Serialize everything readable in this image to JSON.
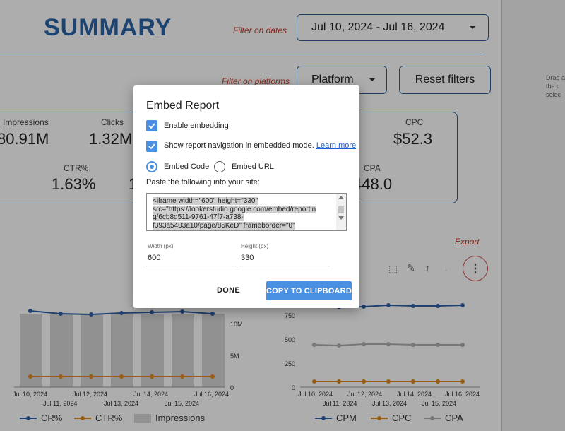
{
  "header": {
    "title": "SUMMARY",
    "filter_dates_label": "Filter on dates",
    "date_range": "Jul 10, 2024 - Jul 16, 2024",
    "filter_platforms_label": "Filter on platforms",
    "platform_button": "Platform",
    "reset_button": "Reset filters"
  },
  "kpis": [
    {
      "label": "Impressions",
      "value": "80.91M"
    },
    {
      "label": "Clicks",
      "value": "1.32M"
    },
    {
      "label": "CPC",
      "value": "$52.3"
    },
    {
      "label": "CTR%",
      "value": "1.63%"
    },
    {
      "label": "CPA",
      "value": "448.0"
    },
    {
      "partial_value": "1"
    }
  ],
  "export_label": "Export",
  "right_panel_hint": [
    "Drag a",
    "the c",
    "selec"
  ],
  "left_chart": {
    "x_labels_top": [
      "Jul 10, 2024",
      "Jul 12, 2024",
      "Jul 14, 2024",
      "Jul 16, 2024"
    ],
    "x_labels_bottom": [
      "Jul 11, 2024",
      "Jul 13, 2024",
      "Jul 15, 2024"
    ],
    "y_right_labels": [
      "10M",
      "5M",
      "0"
    ],
    "legend": [
      "CR%",
      "CTR%",
      "Impressions"
    ]
  },
  "right_chart": {
    "x_labels_top": [
      "Jul 10, 2024",
      "Jul 12, 2024",
      "Jul 14, 2024",
      "Jul 16, 2024"
    ],
    "x_labels_bottom": [
      "Jul 11, 2024",
      "Jul 13, 2024",
      "Jul 15, 2024"
    ],
    "y_labels": [
      "750",
      "500",
      "250",
      "0"
    ],
    "legend": [
      "CPM",
      "CPC",
      "CPA"
    ]
  },
  "dialog": {
    "title": "Embed Report",
    "enable_embedding": "Enable embedding",
    "show_navigation": "Show report navigation in embedded mode.",
    "learn_more": "Learn more",
    "embed_code": "Embed Code",
    "embed_url": "Embed URL",
    "paste_label": "Paste the following into your site:",
    "code_line1": "<iframe width=\"600\" height=\"330\"",
    "code_line2": "src=\"https://lookerstudio.google.com/embed/reportin",
    "code_line3": "g/6cb8d511-9761-47f7-a738-",
    "code_line4": "f393a5403a10/page/85KeD\" frameborder=\"0\"",
    "width_label": "Width (px)",
    "width_value": "600",
    "height_label": "Height (px)",
    "height_value": "330",
    "done": "DONE",
    "copy": "COPY TO CLIPBOARD"
  },
  "colors": {
    "accent": "#2c63a5",
    "dialog_button": "#4a90e2",
    "series_blue": "#2f5fa5",
    "series_orange": "#e08a1e",
    "series_gray": "#b0b0b0",
    "filter_label": "#c0392b"
  }
}
